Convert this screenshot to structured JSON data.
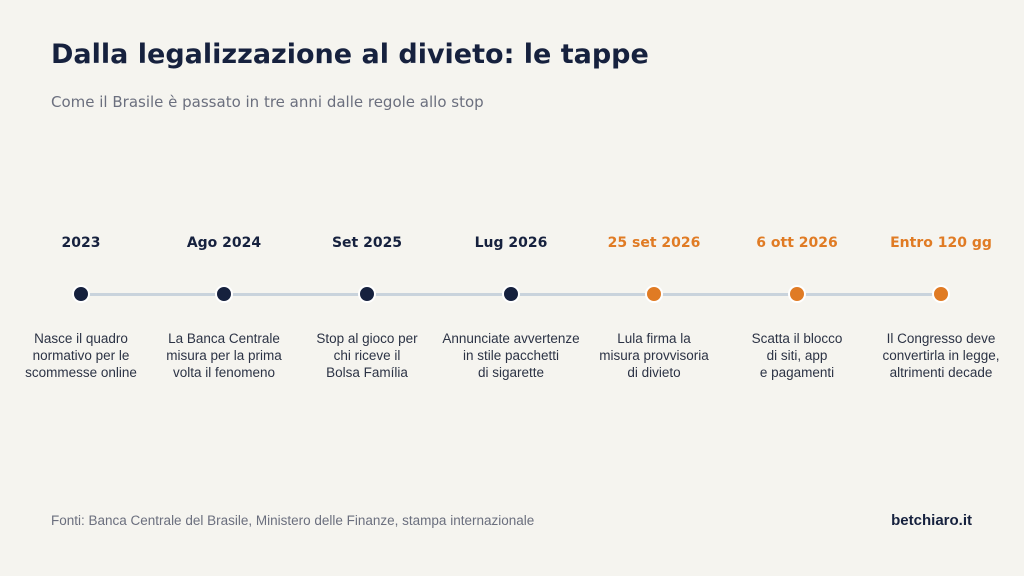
{
  "header": {
    "title": "Dalla legalizzazione al divieto: le tappe",
    "subtitle": "Come il Brasile è passato in tre anni dalle regole allo stop"
  },
  "colors": {
    "past": "#16213e",
    "future": "#e07b24",
    "line": "#c9d3dc",
    "background": "#f5f4ef"
  },
  "timeline": {
    "steps": [
      {
        "date": "2023",
        "description": "Nasce il quadro\nnormativo per le\nscommesse online",
        "status": "past"
      },
      {
        "date": "Ago 2024",
        "description": "La Banca Centrale\nmisura per la prima\nvolta il fenomeno",
        "status": "past"
      },
      {
        "date": "Set 2025",
        "description": "Stop al gioco per\nchi riceve il\nBolsa Família",
        "status": "past"
      },
      {
        "date": "Lug 2026",
        "description": "Annunciate avvertenze\nin stile pacchetti\ndi sigarette",
        "status": "past"
      },
      {
        "date": "25 set 2026",
        "description": "Lula firma la\nmisura provvisoria\ndi divieto",
        "status": "future"
      },
      {
        "date": "6 ott 2026",
        "description": "Scatta il blocco\ndi siti, app\ne pagamenti",
        "status": "future"
      },
      {
        "date": "Entro 120 gg",
        "description": "Il Congresso deve\nconvertirla in legge,\naltrimenti decade",
        "status": "future"
      }
    ]
  },
  "footer": {
    "source": "Fonti: Banca Centrale del Brasile, Ministero delle Finanze, stampa internazionale",
    "brand": "betchiaro.it"
  }
}
